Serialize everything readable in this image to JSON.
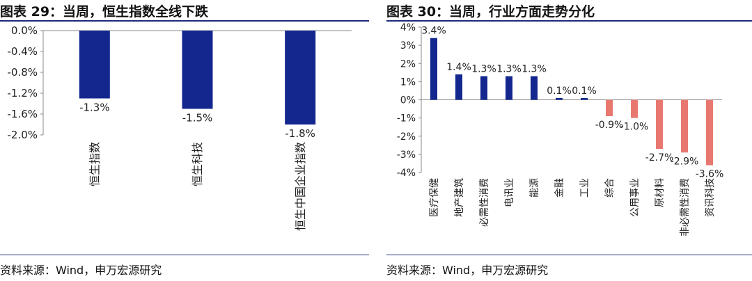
{
  "left": {
    "title": "图表 29：当周，恒生指数全线下跌",
    "source": "资料来源：Wind，申万宏源研究"
  },
  "right": {
    "title": "图表 30：当周，行业方面走势分化",
    "source": "资料来源：Wind，申万宏源研究"
  },
  "chart_data": [
    {
      "type": "bar",
      "title": "图表 29：当周，恒生指数全线下跌",
      "categories": [
        "恒生指数",
        "恒生科技",
        "恒生中国企业指数"
      ],
      "values": [
        -1.3,
        -1.5,
        -1.8
      ],
      "data_labels": [
        "-1.3%",
        "-1.5%",
        "-1.8%"
      ],
      "ylim": [
        -2.0,
        0.0
      ],
      "yticks": [
        "0.0%",
        "-0.4%",
        "-0.8%",
        "-1.2%",
        "-1.6%",
        "-2.0%"
      ],
      "ytick_values": [
        0.0,
        -0.4,
        -0.8,
        -1.2,
        -1.6,
        -2.0
      ],
      "colors": {
        "bar": "#13278f"
      },
      "grid": false,
      "legend": "none"
    },
    {
      "type": "bar",
      "title": "图表 30：当周，行业方面走势分化",
      "categories": [
        "医疗保健",
        "地产建筑",
        "必需性消费",
        "电讯业",
        "能源",
        "金融",
        "工业",
        "综合",
        "公用事业",
        "原材料",
        "非必需性消费",
        "资讯科技"
      ],
      "values": [
        3.4,
        1.4,
        1.3,
        1.3,
        1.3,
        0.1,
        0.1,
        -0.9,
        -1.0,
        -2.7,
        -2.9,
        -3.6
      ],
      "data_labels": [
        "3.4%",
        "1.4%",
        "1.3%",
        "1.3%",
        "1.3%",
        "0.1%",
        "0.1%",
        "-0.9%",
        "-1.0%",
        "-2.7%",
        "-2.9%",
        "-3.6%"
      ],
      "ylim": [
        -4,
        4
      ],
      "yticks": [
        "4%",
        "3%",
        "2%",
        "1%",
        "0%",
        "-1%",
        "-2%",
        "-3%",
        "-4%"
      ],
      "ytick_values": [
        4,
        3,
        2,
        1,
        0,
        -1,
        -2,
        -3,
        -4
      ],
      "colors": {
        "positive": "#13278f",
        "negative": "#e8786f"
      },
      "grid": false,
      "legend": "none"
    }
  ]
}
